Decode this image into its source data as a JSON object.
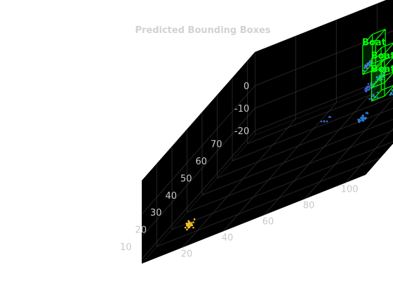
{
  "chart_data": {
    "type": "scatter",
    "title": "Predicted Bounding Boxes",
    "xlabel": "",
    "ylabel": "",
    "zlabel": "",
    "axes": {
      "x": {
        "ticks": [
          20,
          40,
          60,
          80,
          100
        ],
        "range": [
          0,
          110
        ]
      },
      "y": {
        "ticks": [
          10,
          20,
          30,
          40,
          50,
          60,
          70
        ],
        "range": [
          0,
          75
        ]
      },
      "z": {
        "ticks": [
          0,
          -10,
          -20
        ],
        "range": [
          -22,
          15
        ]
      }
    },
    "grid": true,
    "background": "#000000",
    "box_color": "#00ff00",
    "point_colormap": "parula",
    "boxes": [
      {
        "label": "Boat",
        "center": [
          60,
          73,
          -5
        ]
      },
      {
        "label": "Boat",
        "center": [
          71,
          64,
          -8
        ]
      },
      {
        "label": "Boat",
        "center": [
          77,
          56,
          -10
        ]
      },
      {
        "label": "Boat",
        "center": [
          90,
          54,
          -11
        ]
      }
    ],
    "point_clusters": [
      {
        "center": [
          13,
          14,
          -20
        ],
        "count": 30,
        "color": "#f2c42a"
      },
      {
        "center": [
          15,
          13,
          -20
        ],
        "count": 6,
        "color": "#e8b020"
      },
      {
        "center": [
          44,
          63,
          -21
        ],
        "count": 6,
        "color": "#3a6fd8"
      },
      {
        "center": [
          60,
          69,
          -8
        ],
        "count": 22,
        "color": "#4a6cf0"
      },
      {
        "center": [
          66,
          62,
          -14
        ],
        "count": 24,
        "color": "#3f63d8"
      },
      {
        "center": [
          71,
          62,
          -12
        ],
        "count": 20,
        "color": "#2c8ccf"
      },
      {
        "center": [
          73,
          48,
          -20
        ],
        "count": 34,
        "color": "#2a7bcf"
      },
      {
        "center": [
          72,
          57,
          -17
        ],
        "count": 12,
        "color": "#3a5fe0"
      },
      {
        "center": [
          85,
          53,
          -16
        ],
        "count": 16,
        "color": "#2f8fc8"
      },
      {
        "center": [
          90,
          56,
          -13
        ],
        "count": 16,
        "color": "#35a8b8"
      },
      {
        "center": [
          78,
          54,
          -6
        ],
        "count": 12,
        "color": "#3ea8a0"
      }
    ]
  }
}
